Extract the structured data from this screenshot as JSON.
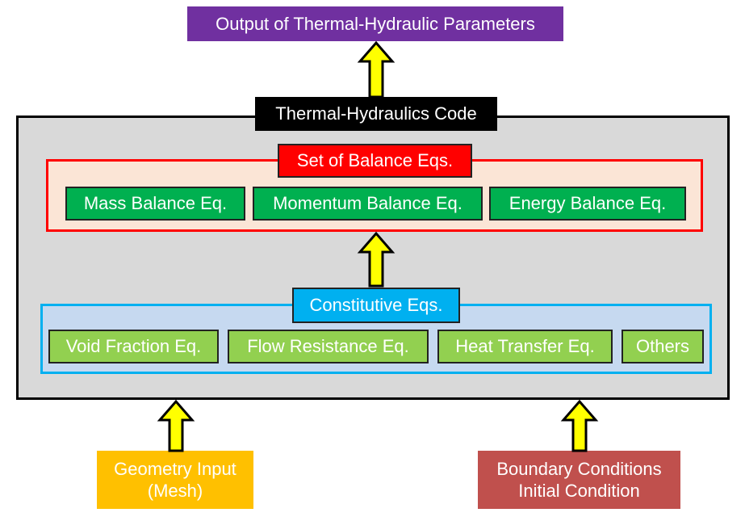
{
  "output": "Output of Thermal-Hydraulic Parameters",
  "code_title": "Thermal-Hydraulics Code",
  "balance": {
    "title": "Set of Balance Eqs.",
    "items": [
      "Mass Balance Eq.",
      "Momentum Balance Eq.",
      "Energy Balance Eq."
    ]
  },
  "constitutive": {
    "title": "Constitutive Eqs.",
    "items": [
      "Void Fraction Eq.",
      "Flow Resistance Eq.",
      "Heat Transfer Eq.",
      "Others"
    ]
  },
  "inputs": {
    "geometry": [
      "Geometry Input",
      "(Mesh)"
    ],
    "boundary": [
      "Boundary Conditions",
      "Initial Condition"
    ]
  },
  "colors": {
    "output": "#7030a0",
    "balance": "#ff0000",
    "balance_fill": "#fbe5d6",
    "constitutive": "#00b0f0",
    "constitutive_fill": "#c6d9f0",
    "green": "#00b050",
    "light_green": "#92d050",
    "geometry": "#ffc000",
    "boundary": "#c0504d",
    "arrow": "#ffff00"
  }
}
